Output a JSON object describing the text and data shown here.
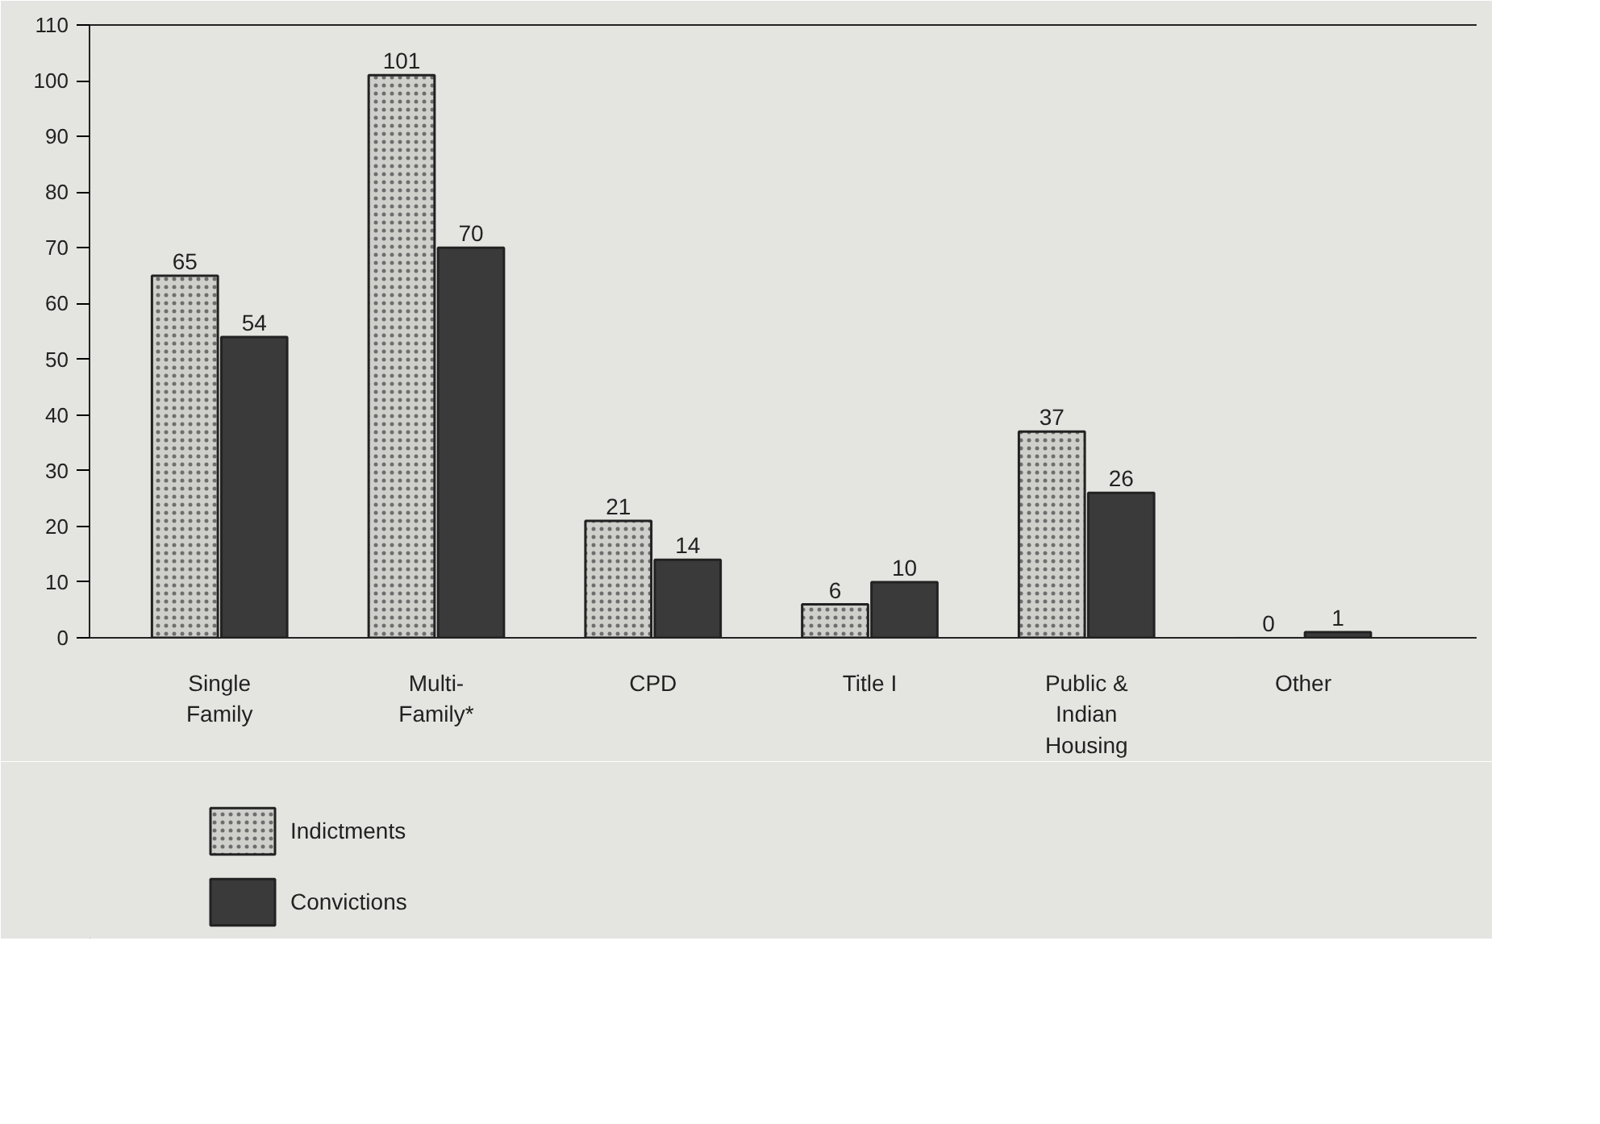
{
  "chart_data": {
    "type": "bar",
    "categories": [
      "Single\nFamily",
      "Multi-\nFamily*",
      "CPD",
      "Title I",
      "Public &\nIndian\nHousing",
      "Other"
    ],
    "series": [
      {
        "name": "Indictments",
        "color": "#cfcfcb",
        "values": [
          65,
          101,
          21,
          6,
          37,
          0
        ]
      },
      {
        "name": "Convictions",
        "color": "#3a3a3a",
        "values": [
          54,
          70,
          14,
          10,
          26,
          1
        ]
      }
    ],
    "ylim": [
      0,
      110
    ],
    "yticks": [
      0,
      10,
      20,
      30,
      40,
      50,
      60,
      70,
      80,
      90,
      100,
      110
    ],
    "data_labels": true,
    "legend": "bottom left"
  }
}
